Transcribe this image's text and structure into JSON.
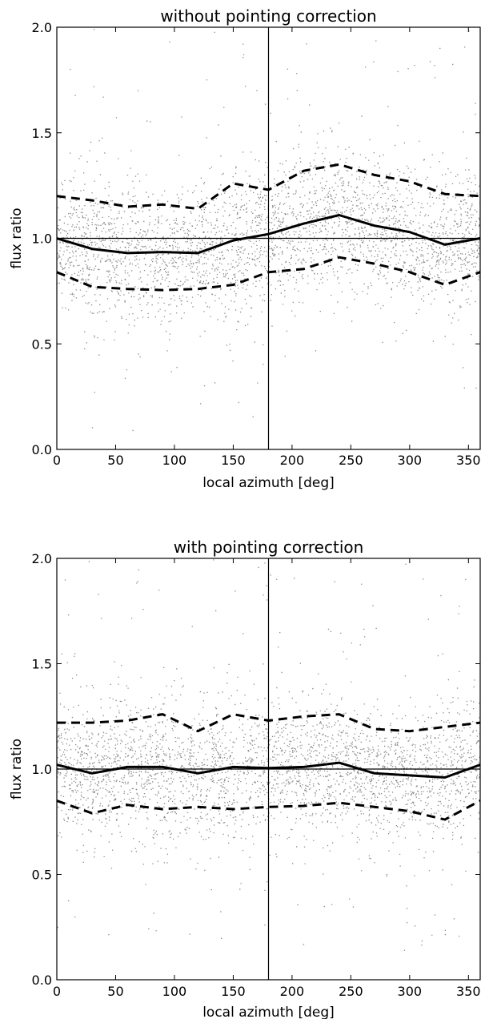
{
  "chart_data": [
    {
      "type": "scatter",
      "title": "without pointing correction",
      "xlabel": "local azimuth [deg]",
      "ylabel": "flux ratio",
      "xlim": [
        0,
        360
      ],
      "ylim": [
        0.0,
        2.0
      ],
      "xticks": [
        "0",
        "50",
        "100",
        "150",
        "200",
        "250",
        "300",
        "350"
      ],
      "yticks": [
        "0.0",
        "0.5",
        "1.0",
        "1.5",
        "2.0"
      ],
      "grid": false,
      "reference_lines": {
        "horizontal_y": 1.0,
        "vertical_x": 180
      },
      "scatter_color": "#8a8a8a",
      "series": [
        {
          "style": "solid",
          "x": [
            0,
            30,
            60,
            90,
            120,
            150,
            180,
            210,
            240,
            270,
            300,
            330,
            360
          ],
          "y": [
            1.0,
            0.95,
            0.93,
            0.935,
            0.93,
            0.99,
            1.02,
            1.07,
            1.11,
            1.06,
            1.03,
            0.97,
            1.0
          ]
        },
        {
          "style": "dashed",
          "x": [
            0,
            30,
            60,
            90,
            120,
            150,
            180,
            210,
            240,
            270,
            300,
            330,
            360
          ],
          "y": [
            1.2,
            1.18,
            1.15,
            1.16,
            1.14,
            1.26,
            1.23,
            1.32,
            1.35,
            1.3,
            1.27,
            1.21,
            1.2
          ]
        },
        {
          "style": "dashed",
          "x": [
            0,
            30,
            60,
            90,
            120,
            150,
            180,
            210,
            240,
            270,
            300,
            330,
            360
          ],
          "y": [
            0.84,
            0.77,
            0.76,
            0.755,
            0.76,
            0.78,
            0.84,
            0.855,
            0.91,
            0.88,
            0.84,
            0.78,
            0.84
          ]
        }
      ]
    },
    {
      "type": "scatter",
      "title": "with pointing correction",
      "xlabel": "local azimuth [deg]",
      "ylabel": "flux ratio",
      "xlim": [
        0,
        360
      ],
      "ylim": [
        0.0,
        2.0
      ],
      "xticks": [
        "0",
        "50",
        "100",
        "150",
        "200",
        "250",
        "300",
        "350"
      ],
      "yticks": [
        "0.0",
        "0.5",
        "1.0",
        "1.5",
        "2.0"
      ],
      "grid": false,
      "reference_lines": {
        "horizontal_y": 1.0,
        "vertical_x": 180
      },
      "scatter_color": "#8a8a8a",
      "series": [
        {
          "style": "solid",
          "x": [
            0,
            30,
            60,
            90,
            120,
            150,
            180,
            210,
            240,
            270,
            300,
            330,
            360
          ],
          "y": [
            1.02,
            0.98,
            1.01,
            1.01,
            0.98,
            1.01,
            1.005,
            1.01,
            1.03,
            0.98,
            0.97,
            0.96,
            1.02
          ]
        },
        {
          "style": "dashed",
          "x": [
            0,
            30,
            60,
            90,
            120,
            150,
            180,
            210,
            240,
            270,
            300,
            330,
            360
          ],
          "y": [
            1.22,
            1.22,
            1.23,
            1.26,
            1.18,
            1.26,
            1.23,
            1.25,
            1.26,
            1.19,
            1.18,
            1.2,
            1.22
          ]
        },
        {
          "style": "dashed",
          "x": [
            0,
            30,
            60,
            90,
            120,
            150,
            180,
            210,
            240,
            270,
            300,
            330,
            360
          ],
          "y": [
            0.85,
            0.79,
            0.83,
            0.81,
            0.82,
            0.81,
            0.82,
            0.825,
            0.84,
            0.82,
            0.8,
            0.76,
            0.85
          ]
        }
      ]
    }
  ]
}
